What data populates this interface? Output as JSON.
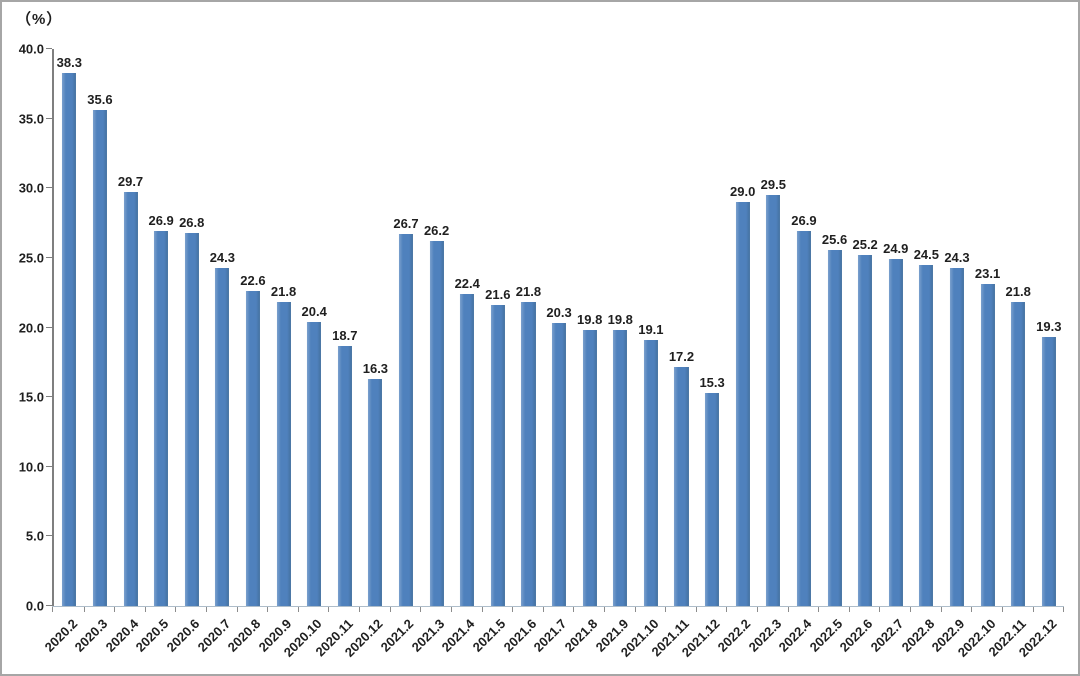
{
  "chart_data": {
    "type": "bar",
    "title": "",
    "unit_label": "（%）",
    "categories": [
      "2020.2",
      "2020.3",
      "2020.4",
      "2020.5",
      "2020.6",
      "2020.7",
      "2020.8",
      "2020.9",
      "2020.10",
      "2020.11",
      "2020.12",
      "2021.2",
      "2021.3",
      "2021.4",
      "2021.5",
      "2021.6",
      "2021.7",
      "2021.8",
      "2021.9",
      "2021.10",
      "2021.11",
      "2021.12",
      "2022.2",
      "2022.3",
      "2022.4",
      "2022.5",
      "2022.6",
      "2022.7",
      "2022.8",
      "2022.9",
      "2022.10",
      "2022.11",
      "2022.12"
    ],
    "values": [
      38.3,
      35.6,
      29.7,
      26.9,
      26.8,
      24.3,
      22.6,
      21.8,
      20.4,
      18.7,
      16.3,
      26.7,
      26.2,
      22.4,
      21.6,
      21.8,
      20.3,
      19.8,
      19.8,
      19.1,
      17.2,
      15.3,
      29.0,
      29.5,
      26.9,
      25.6,
      25.2,
      24.9,
      24.5,
      24.3,
      23.1,
      21.8,
      19.3
    ],
    "ylim": [
      0,
      40
    ],
    "yticks": [
      0.0,
      5.0,
      10.0,
      15.0,
      20.0,
      25.0,
      30.0,
      35.0,
      40.0
    ],
    "value_label_decimals": 1,
    "bar_color": "#4f81bd",
    "axis_color": "#7f7f7f",
    "x_axis_line_color": "#aebdca",
    "text_color": "#1f1f1f",
    "frame_border_color": "#a6a6a6",
    "grid": false,
    "legend": false,
    "xlabel": "",
    "ylabel": ""
  }
}
